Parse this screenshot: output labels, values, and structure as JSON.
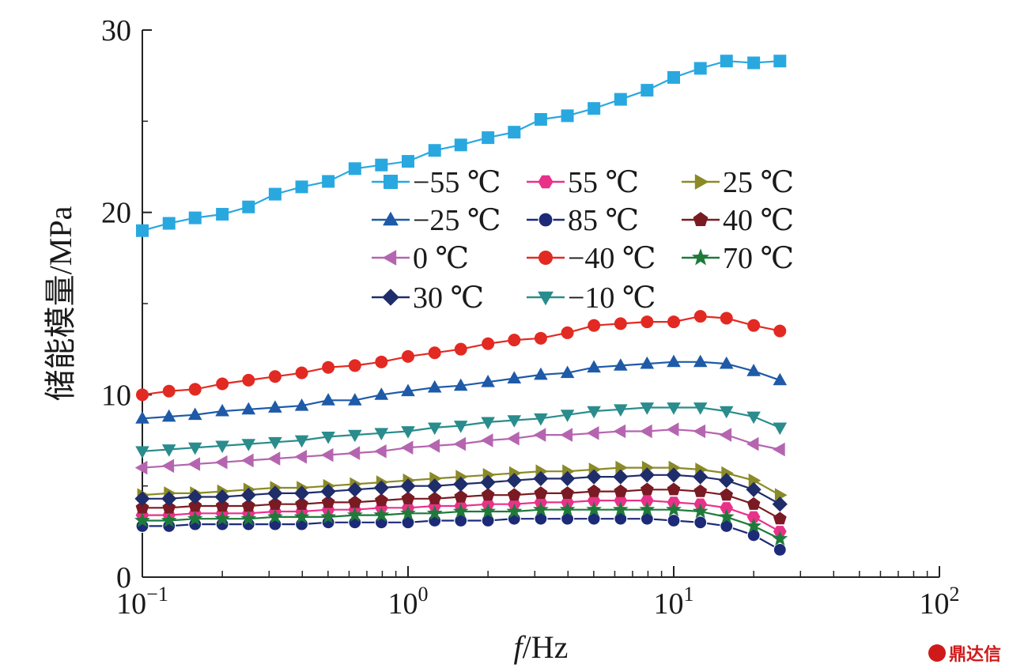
{
  "chart_data": {
    "type": "line",
    "title": "",
    "ylabel": "储能模量/MPa",
    "xlabel_italic": "f",
    "xlabel_rest": "/Hz",
    "x_scale": "log",
    "xlim": [
      0.1,
      100
    ],
    "ylim": [
      0,
      30
    ],
    "x_ticks": [
      {
        "value": 0.1,
        "base": "10",
        "exp": "−1"
      },
      {
        "value": 1,
        "base": "10",
        "exp": "0"
      },
      {
        "value": 10,
        "base": "10",
        "exp": "1"
      },
      {
        "value": 100,
        "base": "10",
        "exp": "2"
      }
    ],
    "y_ticks": [
      {
        "value": 0,
        "label": "0"
      },
      {
        "value": 10,
        "label": "10"
      },
      {
        "value": 20,
        "label": "20"
      },
      {
        "value": 30,
        "label": "30"
      }
    ],
    "grid": false,
    "legend_position": "upper-center",
    "x": [
      0.1,
      0.126,
      0.158,
      0.2,
      0.251,
      0.316,
      0.398,
      0.501,
      0.631,
      0.794,
      1.0,
      1.26,
      1.58,
      2.0,
      2.51,
      3.16,
      3.98,
      5.01,
      6.31,
      7.94,
      10.0,
      12.6,
      15.8,
      20.0,
      25.1
    ],
    "series": [
      {
        "name": "−55 ℃",
        "color": "#29a8e0",
        "marker": "square",
        "values": [
          19.0,
          19.4,
          19.7,
          19.9,
          20.3,
          21.0,
          21.4,
          21.7,
          22.4,
          22.6,
          22.8,
          23.4,
          23.7,
          24.1,
          24.4,
          25.1,
          25.3,
          25.7,
          26.2,
          26.7,
          27.4,
          27.9,
          28.3,
          28.2,
          28.3
        ]
      },
      {
        "name": "55 ℃",
        "color": "#e8328a",
        "marker": "hexagon",
        "values": [
          3.4,
          3.4,
          3.5,
          3.5,
          3.5,
          3.6,
          3.6,
          3.7,
          3.7,
          3.8,
          3.8,
          3.9,
          3.9,
          4.0,
          4.0,
          4.1,
          4.1,
          4.2,
          4.2,
          4.2,
          4.1,
          4.0,
          3.8,
          3.3,
          2.5
        ]
      },
      {
        "name": "25 ℃",
        "color": "#8a8a28",
        "marker": "triangle-right",
        "values": [
          4.5,
          4.6,
          4.6,
          4.7,
          4.8,
          4.9,
          4.9,
          5.0,
          5.1,
          5.2,
          5.3,
          5.4,
          5.5,
          5.6,
          5.7,
          5.8,
          5.8,
          5.9,
          6.0,
          6.0,
          6.0,
          5.9,
          5.7,
          5.3,
          4.5
        ]
      },
      {
        "name": "−25 ℃",
        "color": "#1e5aa8",
        "marker": "triangle-up",
        "values": [
          8.7,
          8.8,
          8.9,
          9.1,
          9.2,
          9.3,
          9.4,
          9.7,
          9.7,
          10.0,
          10.2,
          10.4,
          10.5,
          10.7,
          10.9,
          11.1,
          11.2,
          11.5,
          11.6,
          11.7,
          11.8,
          11.8,
          11.7,
          11.3,
          10.8
        ]
      },
      {
        "name": "85 ℃",
        "color": "#1c2a78",
        "marker": "sphere",
        "values": [
          2.8,
          2.8,
          2.9,
          2.9,
          2.9,
          2.9,
          2.9,
          3.0,
          3.0,
          3.0,
          3.0,
          3.1,
          3.1,
          3.1,
          3.2,
          3.2,
          3.2,
          3.2,
          3.2,
          3.2,
          3.1,
          3.0,
          2.8,
          2.3,
          1.5
        ]
      },
      {
        "name": "40 ℃",
        "color": "#7a1a22",
        "marker": "pentagon",
        "values": [
          3.8,
          3.8,
          3.9,
          3.9,
          3.9,
          4.0,
          4.0,
          4.1,
          4.1,
          4.2,
          4.3,
          4.3,
          4.4,
          4.5,
          4.5,
          4.6,
          4.6,
          4.7,
          4.7,
          4.8,
          4.8,
          4.7,
          4.5,
          4.0,
          3.2
        ]
      },
      {
        "name": "0 ℃",
        "color": "#b565b0",
        "marker": "triangle-left",
        "values": [
          6.0,
          6.1,
          6.2,
          6.3,
          6.4,
          6.5,
          6.6,
          6.7,
          6.8,
          6.9,
          7.1,
          7.2,
          7.3,
          7.5,
          7.6,
          7.8,
          7.8,
          7.9,
          8.0,
          8.0,
          8.1,
          8.0,
          7.8,
          7.3,
          7.0
        ]
      },
      {
        "name": "−40 ℃",
        "color": "#e22a22",
        "marker": "circle",
        "values": [
          10.0,
          10.2,
          10.3,
          10.6,
          10.8,
          11.0,
          11.2,
          11.5,
          11.6,
          11.8,
          12.1,
          12.3,
          12.5,
          12.8,
          13.0,
          13.1,
          13.4,
          13.8,
          13.9,
          14.0,
          14.0,
          14.3,
          14.2,
          13.8,
          13.5
        ]
      },
      {
        "name": "70 ℃",
        "color": "#1f7a3a",
        "marker": "star",
        "values": [
          3.1,
          3.1,
          3.2,
          3.2,
          3.2,
          3.3,
          3.3,
          3.3,
          3.4,
          3.4,
          3.5,
          3.5,
          3.6,
          3.6,
          3.6,
          3.7,
          3.7,
          3.7,
          3.7,
          3.7,
          3.7,
          3.6,
          3.3,
          2.8,
          2.1
        ]
      },
      {
        "name": "30 ℃",
        "color": "#1f2d6a",
        "marker": "diamond",
        "values": [
          4.3,
          4.3,
          4.4,
          4.4,
          4.5,
          4.6,
          4.6,
          4.7,
          4.8,
          4.9,
          5.0,
          5.0,
          5.1,
          5.2,
          5.3,
          5.4,
          5.4,
          5.5,
          5.5,
          5.6,
          5.6,
          5.5,
          5.3,
          4.8,
          4.0
        ]
      },
      {
        "name": "−10 ℃",
        "color": "#2a8c8c",
        "marker": "triangle-down",
        "values": [
          6.9,
          7.0,
          7.1,
          7.2,
          7.3,
          7.4,
          7.5,
          7.7,
          7.8,
          7.9,
          8.0,
          8.2,
          8.3,
          8.5,
          8.6,
          8.7,
          8.9,
          9.1,
          9.2,
          9.3,
          9.3,
          9.3,
          9.1,
          8.8,
          8.2
        ]
      }
    ]
  },
  "watermark": "鼎达信"
}
